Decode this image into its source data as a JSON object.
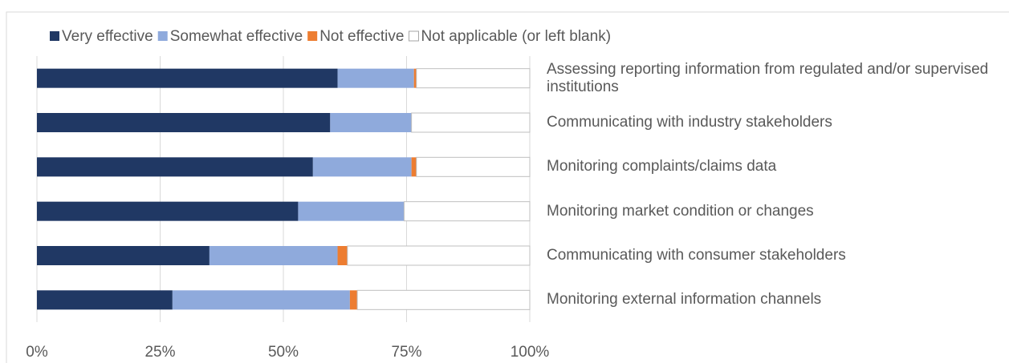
{
  "chart_data": {
    "type": "stacked-bar-horizontal",
    "categories": [
      "Assessing reporting information from regulated and/or supervised institutions",
      "Communicating with industry stakeholders",
      "Monitoring complaints/claims data",
      "Monitoring market condition or changes",
      "Communicating with consumer stakeholders",
      "Monitoring external information channels"
    ],
    "series": [
      {
        "name": "Very effective",
        "color": "#203864",
        "values": [
          61,
          59.5,
          56,
          53,
          35,
          27.5
        ]
      },
      {
        "name": "Somewhat effective",
        "color": "#8faadc",
        "values": [
          15.5,
          16.5,
          20,
          21.5,
          26,
          36
        ]
      },
      {
        "name": "Not effective",
        "color": "#ed7d31",
        "values": [
          0.5,
          0,
          1,
          0,
          2,
          1.5
        ]
      },
      {
        "name": "Not applicable (or left blank)",
        "color": "#ffffff",
        "values": [
          23,
          24,
          23,
          25.5,
          37,
          35
        ]
      }
    ],
    "xlim": [
      0,
      100
    ],
    "xticks": [
      {
        "value": 0,
        "label": "0%"
      },
      {
        "value": 25,
        "label": "25%"
      },
      {
        "value": 50,
        "label": "50%"
      },
      {
        "value": 75,
        "label": "75%"
      },
      {
        "value": 100,
        "label": "100%"
      }
    ],
    "grid": true,
    "legend": "top"
  }
}
